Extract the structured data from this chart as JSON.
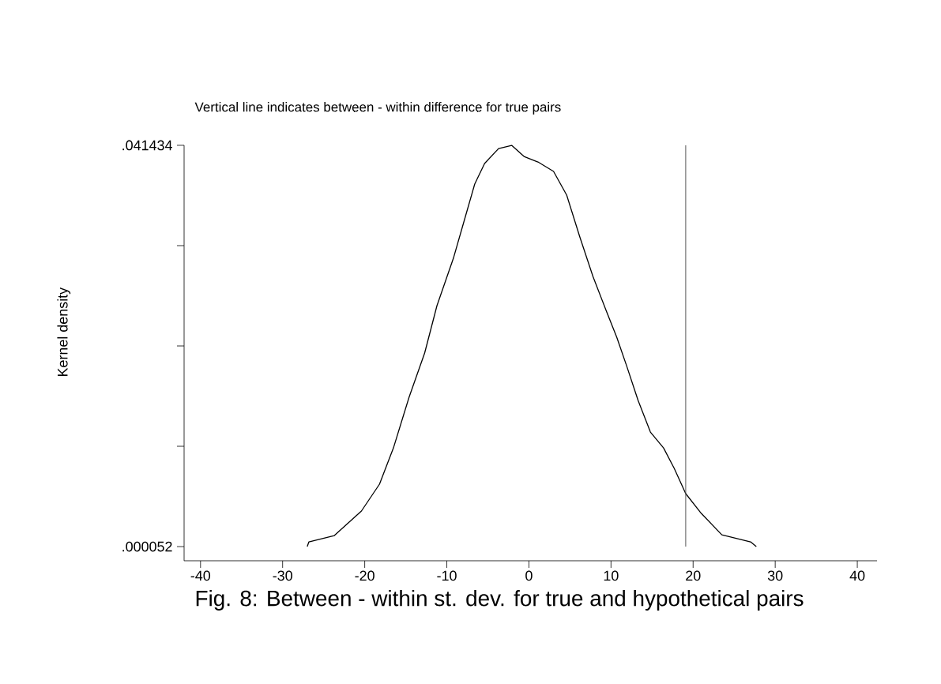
{
  "chart_data": {
    "type": "line",
    "title": "Vertical line indicates between - within difference for true pairs",
    "ylabel": "Kernel density",
    "annotations": [
      "Fig. 8: Between - within st. dev. for true and hypothetical pairs"
    ],
    "x": [
      -27.0,
      -26.8,
      -23.7,
      -20.4,
      -18.2,
      -16.5,
      -14.6,
      -12.7,
      -11.2,
      -9.2,
      -7.9,
      -6.6,
      -5.4,
      -3.7,
      -2.1,
      -0.6,
      0.6,
      1.1,
      3.0,
      4.6,
      6.2,
      7.8,
      9.4,
      10.7,
      11.9,
      13.3,
      14.8,
      16.4,
      17.7,
      19.1,
      21.0,
      23.5,
      27.0,
      27.7
    ],
    "series": [
      {
        "color": "#000000",
        "values": [
          5.2e-05,
          0.00054,
          0.00119,
          0.00372,
          0.00649,
          0.01023,
          0.01545,
          0.02001,
          0.0249,
          0.02978,
          0.03361,
          0.03744,
          0.03956,
          0.0411,
          0.04143,
          0.04029,
          0.03988,
          0.03972,
          0.03874,
          0.0363,
          0.03198,
          0.02791,
          0.02441,
          0.02164,
          0.0187,
          0.01512,
          0.01186,
          0.01023,
          0.00812,
          0.00551,
          0.00347,
          0.00127,
          0.00054,
          5.2e-05
        ]
      }
    ],
    "xlim": [
      -42,
      42.4
    ],
    "ylim": [
      -0.00141,
      0.041434
    ],
    "xticks": [
      -40,
      -30,
      -20,
      -10,
      0,
      10,
      20,
      30,
      40
    ],
    "yticks": [
      {
        "value": 5.2e-05,
        "label": ".000052"
      },
      {
        "value": 0.0103975,
        "label": null
      },
      {
        "value": 0.020743,
        "label": null
      },
      {
        "value": 0.0310885,
        "label": null
      },
      {
        "value": 0.041434,
        "label": ".041434"
      }
    ],
    "ref_lines": [
      {
        "axis": "x",
        "value": 19.1,
        "color": "#555555"
      }
    ],
    "grid": false,
    "marker": "none",
    "line_style": "solid"
  }
}
